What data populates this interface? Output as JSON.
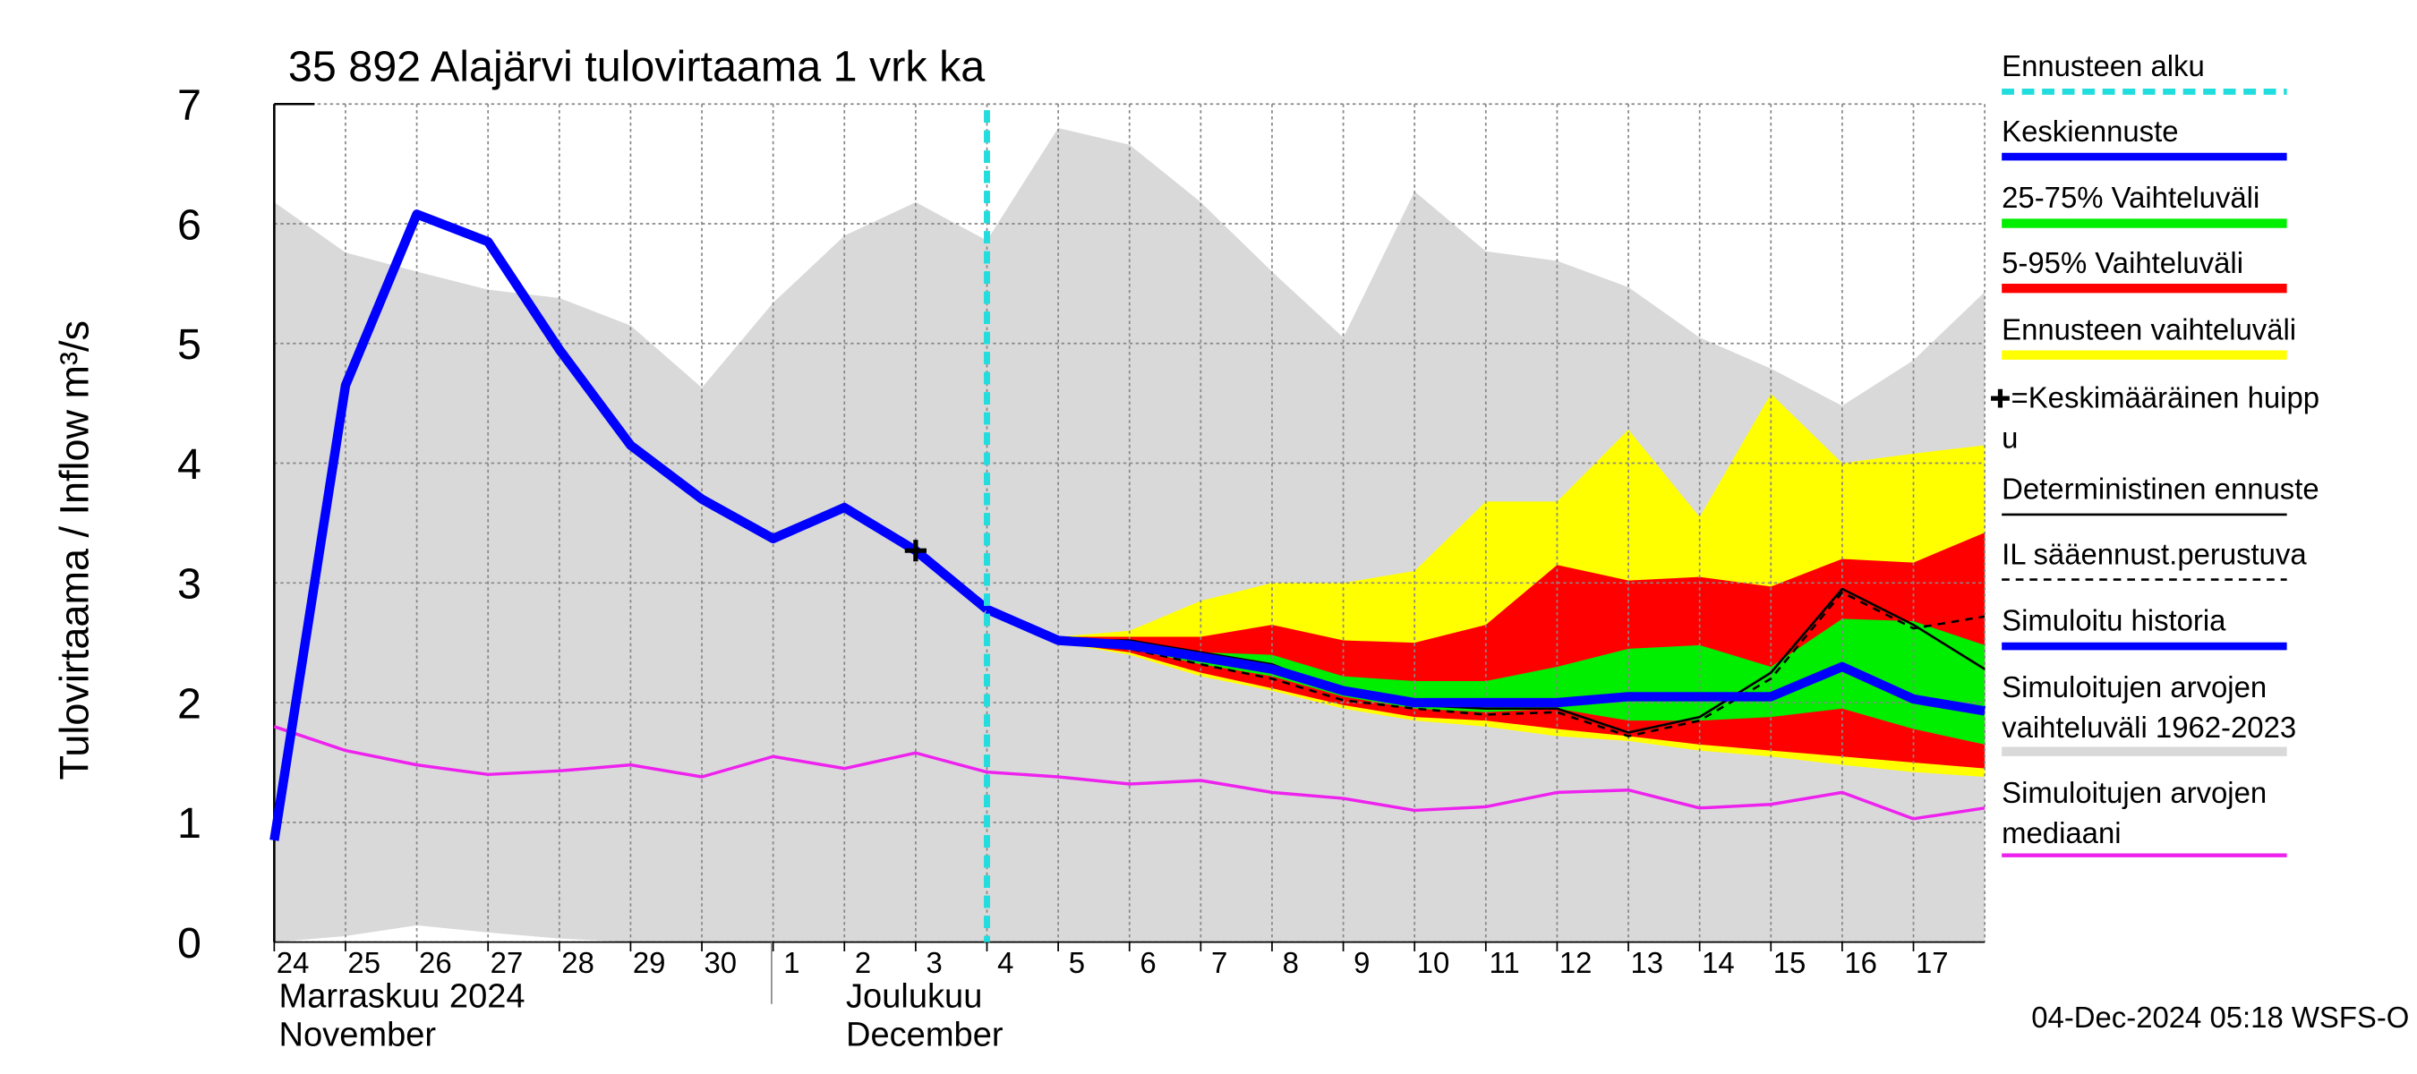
{
  "chart_data": {
    "type": "line",
    "title": "35 892 Alajärvi tulovirtaama 1 vrk ka",
    "y_label": "Tulovirtaama / Inflow    m³/s",
    "categories": [
      "24",
      "25",
      "26",
      "27",
      "28",
      "29",
      "30",
      "1",
      "2",
      "3",
      "4",
      "5",
      "6",
      "7",
      "8",
      "9",
      "10",
      "11",
      "12",
      "13",
      "14",
      "15",
      "16",
      "17",
      null
    ],
    "months": [
      [
        "Marraskuu 2024",
        "November"
      ],
      [
        "Joulukuu",
        "December"
      ]
    ],
    "ylim": [
      0,
      7
    ],
    "yticks": [
      0,
      1,
      2,
      3,
      4,
      5,
      6,
      7
    ],
    "grid": true,
    "footer": "04-Dec-2024 05:18 WSFS-O",
    "forecast_start": {
      "name": "Ennusteen alku",
      "color": "#22dddd",
      "category": "4"
    },
    "peak": {
      "name": [
        "=Keskimääräinen huipp",
        "u"
      ],
      "color": "#000000",
      "category": "3",
      "value": 3.27
    },
    "bands": [
      {
        "name": [
          "Simuloitujen arvojen",
          "vaihteluväli 1962-2023"
        ],
        "color": "#d9d9d9",
        "upper": [
          6.18,
          5.76,
          5.6,
          5.45,
          5.38,
          5.15,
          4.63,
          5.34,
          5.9,
          6.18,
          5.86,
          6.8,
          6.66,
          6.18,
          5.6,
          5.05,
          6.27,
          5.77,
          5.69,
          5.47,
          5.05,
          4.79,
          4.48,
          4.86,
          5.43
        ],
        "lower": [
          0,
          0.05,
          0.14,
          0.08,
          0.03,
          0,
          0,
          0,
          0,
          0,
          0,
          0,
          0,
          0,
          0,
          0,
          0,
          0,
          0,
          0,
          0,
          0,
          0,
          0,
          0
        ]
      },
      {
        "name": [
          "Ennusteen vaihteluväli"
        ],
        "color": "#ffff00",
        "upper": [
          null,
          null,
          null,
          null,
          null,
          null,
          null,
          null,
          null,
          null,
          2.78,
          2.55,
          2.6,
          2.85,
          3.0,
          3.0,
          3.1,
          3.68,
          3.68,
          4.28,
          3.55,
          4.58,
          4.0,
          4.08,
          4.15
        ],
        "lower": [
          null,
          null,
          null,
          null,
          null,
          null,
          null,
          null,
          null,
          null,
          2.78,
          2.5,
          2.4,
          2.22,
          2.1,
          1.95,
          1.85,
          1.8,
          1.72,
          1.68,
          1.6,
          1.55,
          1.48,
          1.42,
          1.38
        ]
      },
      {
        "name": [
          "5-95% Vaihteluväli"
        ],
        "color": "#ff0000",
        "upper": [
          null,
          null,
          null,
          null,
          null,
          null,
          null,
          null,
          null,
          null,
          2.78,
          2.55,
          2.55,
          2.55,
          2.65,
          2.52,
          2.5,
          2.65,
          3.15,
          3.02,
          3.05,
          2.97,
          3.2,
          3.17,
          3.42
        ],
        "lower": [
          null,
          null,
          null,
          null,
          null,
          null,
          null,
          null,
          null,
          null,
          2.78,
          2.5,
          2.42,
          2.25,
          2.12,
          1.98,
          1.88,
          1.85,
          1.78,
          1.72,
          1.65,
          1.6,
          1.55,
          1.5,
          1.45
        ]
      },
      {
        "name": [
          "25-75% Vaihteluväli"
        ],
        "color": "#00ee00",
        "upper": [
          null,
          null,
          null,
          null,
          null,
          null,
          null,
          null,
          null,
          null,
          2.78,
          2.53,
          2.5,
          2.42,
          2.4,
          2.22,
          2.18,
          2.18,
          2.3,
          2.45,
          2.48,
          2.3,
          2.7,
          2.68,
          2.48
        ],
        "lower": [
          null,
          null,
          null,
          null,
          null,
          null,
          null,
          null,
          null,
          null,
          2.78,
          2.52,
          2.45,
          2.32,
          2.22,
          2.05,
          1.95,
          1.92,
          1.95,
          1.85,
          1.85,
          1.88,
          1.95,
          1.78,
          1.65
        ]
      }
    ],
    "series": [
      {
        "name": [
          "Simuloitujen arvojen",
          "mediaani"
        ],
        "color": "#ee22ee",
        "width": 2,
        "dashed": false,
        "values": [
          1.8,
          1.6,
          1.48,
          1.4,
          1.43,
          1.48,
          1.38,
          1.55,
          1.45,
          1.58,
          1.42,
          1.38,
          1.32,
          1.35,
          1.25,
          1.2,
          1.1,
          1.13,
          1.25,
          1.27,
          1.12,
          1.15,
          1.25,
          1.03,
          1.12
        ]
      },
      {
        "name": [
          "Deterministinen ennuste"
        ],
        "color": "#000000",
        "width": 1.5,
        "dashed": false,
        "values": [
          null,
          null,
          null,
          null,
          null,
          null,
          null,
          null,
          3.63,
          3.27,
          2.78,
          2.52,
          2.52,
          2.42,
          2.32,
          2.08,
          1.98,
          1.95,
          1.95,
          1.75,
          1.88,
          2.25,
          2.95,
          2.65,
          2.28
        ]
      },
      {
        "name": [
          "IL sääennust.perustuva"
        ],
        "color": "#000000",
        "width": 1.5,
        "dashed": true,
        "values": [
          null,
          null,
          null,
          null,
          null,
          null,
          null,
          null,
          null,
          null,
          2.78,
          2.5,
          2.45,
          2.32,
          2.2,
          2.02,
          1.95,
          1.9,
          1.92,
          1.72,
          1.85,
          2.2,
          2.92,
          2.62,
          2.72
        ]
      },
      {
        "name": [
          "Simuloitu historia"
        ],
        "color": "#0000ff",
        "width": 6,
        "dashed": false,
        "values": [
          0.85,
          4.65,
          6.08,
          5.85,
          4.95,
          4.15,
          3.7,
          3.37,
          3.63,
          3.27,
          2.78,
          null,
          null,
          null,
          null,
          null,
          null,
          null,
          null,
          null,
          null,
          null,
          null,
          null,
          null
        ]
      },
      {
        "name": [
          "Keskiennuste"
        ],
        "color": "#0000ff",
        "width": 6,
        "dashed": false,
        "values": [
          null,
          null,
          null,
          null,
          null,
          null,
          null,
          null,
          null,
          null,
          2.78,
          2.52,
          2.48,
          2.38,
          2.28,
          2.1,
          2.0,
          2.0,
          2.0,
          2.05,
          2.05,
          2.05,
          2.3,
          2.03,
          1.93
        ]
      }
    ]
  }
}
